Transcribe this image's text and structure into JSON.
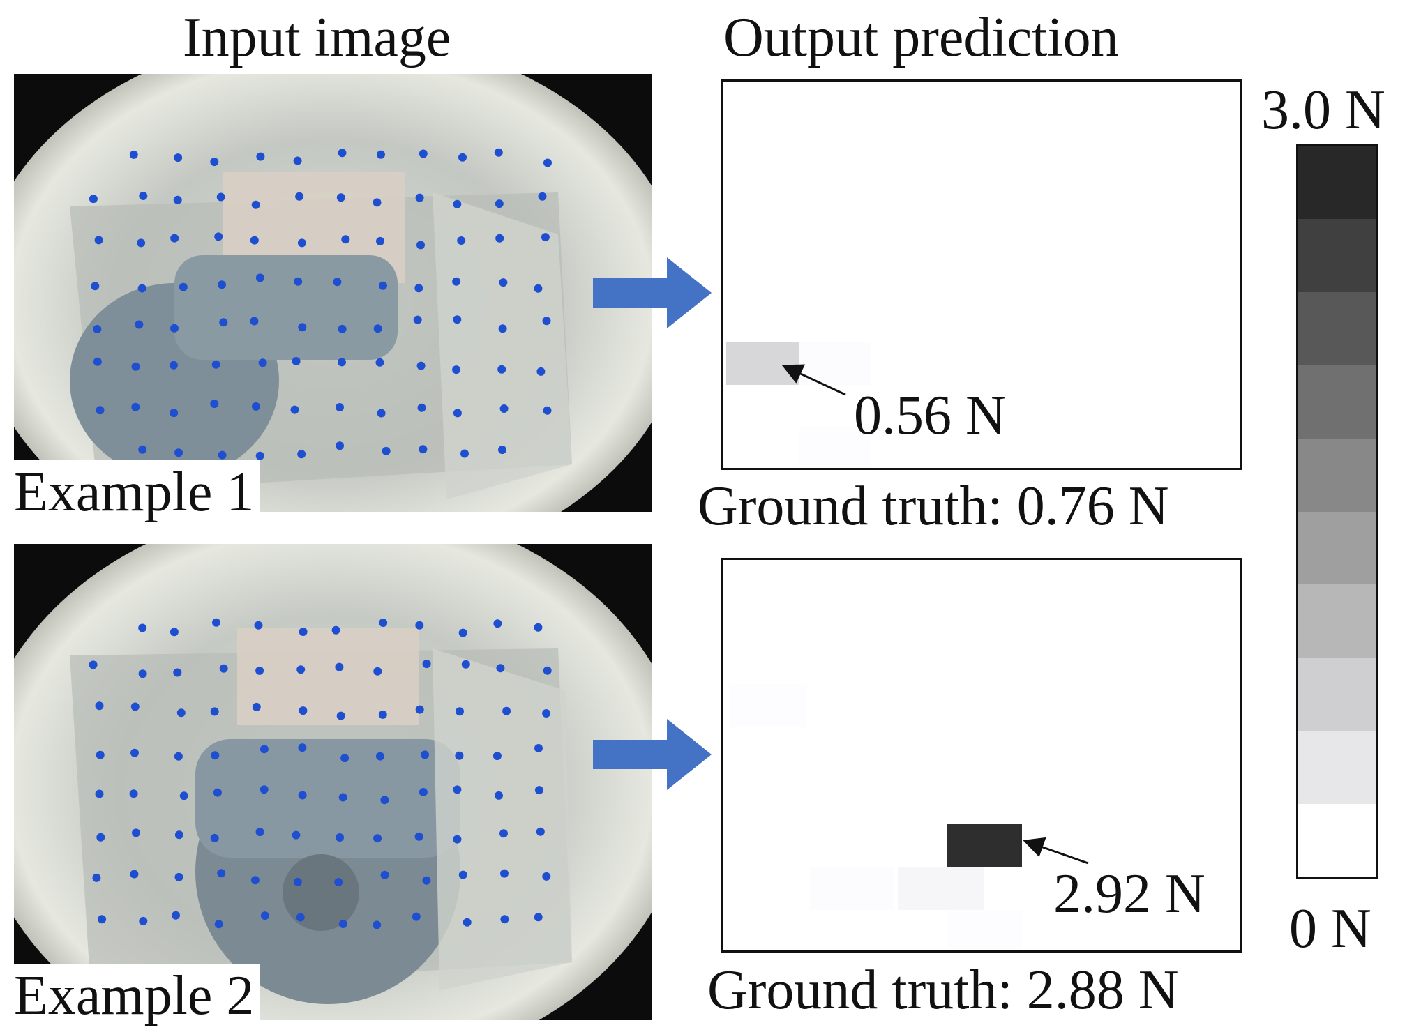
{
  "headers": {
    "input": "Input image",
    "output": "Output prediction"
  },
  "examples": [
    {
      "label": "Example 1",
      "predicted_value": "0.56 N",
      "ground_truth": "Ground truth: 0.76 N",
      "cells": [
        {
          "force": 0.56
        },
        {
          "force": 0.04
        },
        {
          "force": 0.03
        }
      ]
    },
    {
      "label": "Example 2",
      "predicted_value": "2.92 N",
      "ground_truth": "Ground truth: 2.88 N",
      "cells": [
        {
          "force": 0.03
        },
        {
          "force": 2.92
        },
        {
          "force": 0.04
        },
        {
          "force": 0.13
        },
        {
          "force": 0.03
        }
      ]
    }
  ],
  "colorbar": {
    "max_label": "3.0 N",
    "min_label": "0 N",
    "min": 0,
    "max": 3.0,
    "levels": 9
  },
  "colors": {
    "arrow": "#4472C4",
    "marker_dot": "#1f4fd1"
  }
}
